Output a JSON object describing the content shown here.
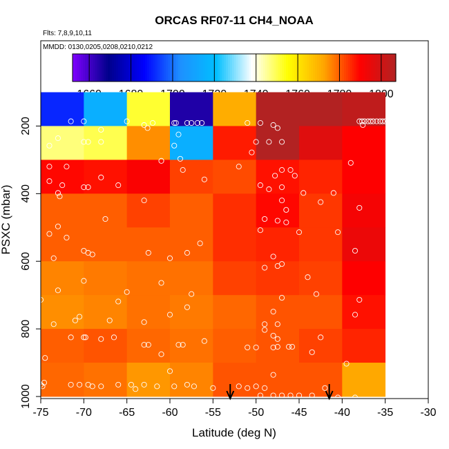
{
  "chart_data": {
    "type": "heatmap",
    "title": "ORCAS RF07-11 CH4_NOAA",
    "subtitle_flights": "Flts: 7,8,9,10,11",
    "subtitle_dates": "MMDD: 0130,0205,0208,0210,0212",
    "xlabel": "Latitude (deg N)",
    "ylabel": "PSXC (mbar)",
    "xlim": [
      -75,
      -30
    ],
    "ylim": [
      1000,
      100
    ],
    "y_inverted": true,
    "x_ticks": [
      -75,
      -70,
      -65,
      -60,
      -55,
      -50,
      -45,
      -40,
      -35,
      -30
    ],
    "x_tick_labels": [
      "-75",
      "-70",
      "-65",
      "-60",
      "-55",
      "-50",
      "-45",
      "-40",
      "-35",
      "-30"
    ],
    "y_ticks": [
      200,
      400,
      600,
      800,
      1000
    ],
    "y_tick_labels": [
      "200",
      "400",
      "600",
      "800",
      "1000"
    ],
    "colorbar": {
      "range": [
        1652,
        1807
      ],
      "ticks": [
        1660,
        1680,
        1700,
        1720,
        1740,
        1760,
        1780,
        1800
      ],
      "tick_labels": [
        "1660",
        "1680",
        "1700",
        "1720",
        "1740",
        "1760",
        "1780",
        "1800"
      ],
      "colors": [
        "#7f00ff",
        "#00008b",
        "#0000ff",
        "#1e90ff",
        "#00bfff",
        "#ffffff",
        "#ffff00",
        "#ffa500",
        "#ff0000",
        "#b22222"
      ]
    },
    "grid": {
      "lat_edges": [
        -75,
        -70,
        -65,
        -60,
        -55,
        -50,
        -45,
        -40,
        -35
      ],
      "p_edges": [
        100,
        200,
        300,
        400,
        500,
        600,
        700,
        800,
        900,
        1000
      ],
      "values": [
        [
          1691,
          1715,
          1752,
          1665,
          1771,
          1807,
          1807,
          1804
        ],
        [
          1747,
          1750,
          1775,
          1715,
          1787,
          1807,
          1797,
          1790
        ],
        [
          1789,
          1788,
          1791,
          1783,
          1782,
          1788,
          1786,
          1790
        ],
        [
          1780,
          1780,
          1783,
          1780,
          1785,
          1789,
          1784,
          1792
        ],
        [
          1780,
          1780,
          1780,
          1780,
          1785,
          1786,
          1784,
          1794
        ],
        [
          1776,
          1777,
          1778,
          1778,
          1783,
          1784,
          1783,
          1790
        ],
        [
          1775,
          1776,
          1778,
          1777,
          1779,
          1781,
          1781,
          1788
        ],
        [
          1780,
          1781,
          1779,
          1778,
          1780,
          1781,
          1783,
          1786
        ],
        [
          1779,
          1778,
          1774,
          1776,
          1781,
          1781,
          1781,
          1772
        ]
      ]
    },
    "samples": [
      [
        -71.5,
        186
      ],
      [
        -70,
        186
      ],
      [
        -65,
        186
      ],
      [
        -62,
        191
      ],
      [
        -59.5,
        191
      ],
      [
        -59.3,
        191
      ],
      [
        -58,
        191
      ],
      [
        -57.5,
        191
      ],
      [
        -56.8,
        191
      ],
      [
        -56.3,
        191
      ],
      [
        -51,
        191
      ],
      [
        -49.5,
        191
      ],
      [
        -48,
        197
      ],
      [
        -47.5,
        206
      ],
      [
        -38,
        186
      ],
      [
        -37.7,
        186
      ],
      [
        -37.4,
        186
      ],
      [
        -37,
        186
      ],
      [
        -36.7,
        186
      ],
      [
        -36.4,
        186
      ],
      [
        -36,
        186
      ],
      [
        -35.6,
        186
      ],
      [
        -35.3,
        186
      ],
      [
        -35,
        186
      ],
      [
        -37.6,
        197
      ],
      [
        -63,
        197
      ],
      [
        -62.6,
        206
      ],
      [
        -68,
        211
      ],
      [
        -59,
        225
      ],
      [
        -73,
        236
      ],
      [
        -70,
        247
      ],
      [
        -69.5,
        247
      ],
      [
        -68,
        247
      ],
      [
        -50,
        247
      ],
      [
        -48.5,
        247
      ],
      [
        -47,
        247
      ],
      [
        -50.5,
        278
      ],
      [
        -59.5,
        258
      ],
      [
        -74,
        258
      ],
      [
        -61,
        303
      ],
      [
        -58.8,
        297
      ],
      [
        -39,
        309
      ],
      [
        -74,
        320
      ],
      [
        -72,
        320
      ],
      [
        -52,
        320
      ],
      [
        -58.5,
        330
      ],
      [
        -47,
        330
      ],
      [
        -46,
        330
      ],
      [
        -47.8,
        347
      ],
      [
        -45.5,
        347
      ],
      [
        -68,
        352
      ],
      [
        -56,
        358
      ],
      [
        -74,
        363
      ],
      [
        -72.5,
        375
      ],
      [
        -70,
        381
      ],
      [
        -69.5,
        381
      ],
      [
        -66,
        375
      ],
      [
        -49.5,
        375
      ],
      [
        -48.5,
        387
      ],
      [
        -47,
        381
      ],
      [
        -44.5,
        398
      ],
      [
        -73,
        398
      ],
      [
        -41,
        398
      ],
      [
        -72.8,
        408
      ],
      [
        -63,
        420
      ],
      [
        -47,
        420
      ],
      [
        -42.5,
        425
      ],
      [
        -38,
        442
      ],
      [
        -46.5,
        448
      ],
      [
        -67.5,
        475
      ],
      [
        -49,
        475
      ],
      [
        -47.5,
        480
      ],
      [
        -46.5,
        485
      ],
      [
        -73,
        497
      ],
      [
        -49.5,
        508
      ],
      [
        -45,
        514
      ],
      [
        -40.5,
        514
      ],
      [
        -74,
        519
      ],
      [
        -72,
        530
      ],
      [
        -56.5,
        547
      ],
      [
        -38.5,
        569
      ],
      [
        -70,
        569
      ],
      [
        -69.5,
        575
      ],
      [
        -69,
        580
      ],
      [
        -62.5,
        575
      ],
      [
        -58,
        575
      ],
      [
        -48,
        586
      ],
      [
        -60,
        591
      ],
      [
        -73.5,
        591
      ],
      [
        -49,
        619
      ],
      [
        -47.5,
        614
      ],
      [
        -47,
        608
      ],
      [
        -44,
        647
      ],
      [
        -70,
        658
      ],
      [
        -61,
        664
      ],
      [
        -73,
        686
      ],
      [
        -65,
        691
      ],
      [
        -43,
        697
      ],
      [
        -57.5,
        697
      ],
      [
        -38,
        714
      ],
      [
        -75,
        714
      ],
      [
        -66,
        719
      ],
      [
        -47,
        708
      ],
      [
        -58,
        736
      ],
      [
        -48,
        749
      ],
      [
        -38.5,
        758
      ],
      [
        -70.5,
        764
      ],
      [
        -60,
        758
      ],
      [
        -67,
        775
      ],
      [
        -71,
        775
      ],
      [
        -63,
        780
      ],
      [
        -73.5,
        786
      ],
      [
        -47.5,
        786
      ],
      [
        -49,
        786
      ],
      [
        -42.5,
        825
      ],
      [
        -71.5,
        825
      ],
      [
        -70,
        825
      ],
      [
        -69.8,
        825
      ],
      [
        -68,
        830
      ],
      [
        -66.5,
        825
      ],
      [
        -49,
        803
      ],
      [
        -48,
        820
      ],
      [
        -47.5,
        830
      ],
      [
        -56,
        836
      ],
      [
        -63,
        847
      ],
      [
        -62.5,
        847
      ],
      [
        -59,
        847
      ],
      [
        -58.5,
        847
      ],
      [
        -47.5,
        853
      ],
      [
        -46.2,
        853
      ],
      [
        -45.8,
        853
      ],
      [
        -48,
        855
      ],
      [
        -50,
        855
      ],
      [
        -51,
        855
      ],
      [
        -61,
        875
      ],
      [
        -43.5,
        869
      ],
      [
        -74.5,
        886
      ],
      [
        -39.5,
        903
      ],
      [
        -60,
        925
      ],
      [
        -48,
        936
      ],
      [
        -71.5,
        965
      ],
      [
        -70.5,
        965
      ],
      [
        -69,
        970
      ],
      [
        -68,
        970
      ],
      [
        -66,
        965
      ],
      [
        -64.5,
        965
      ],
      [
        -63,
        965
      ],
      [
        -61.5,
        970
      ],
      [
        -59.5,
        970
      ],
      [
        -58,
        965
      ],
      [
        -55,
        975
      ],
      [
        -52,
        970
      ],
      [
        -51,
        975
      ],
      [
        -50,
        970
      ],
      [
        -49,
        975
      ],
      [
        -75,
        965
      ],
      [
        -74.8,
        970
      ],
      [
        -42,
        975
      ],
      [
        -49.5,
        997
      ],
      [
        -48,
        997
      ],
      [
        -47,
        997
      ],
      [
        -46,
        997
      ],
      [
        -45,
        997
      ],
      [
        -43.5,
        997
      ],
      [
        -40.5,
        1003
      ],
      [
        -38.5,
        1003
      ],
      [
        -69.5,
        965
      ],
      [
        -74.6,
        959
      ],
      [
        -64,
        978
      ],
      [
        -57.2,
        970
      ]
    ],
    "markers": [
      {
        "lat": -53,
        "type": "arrow"
      },
      {
        "lat": -41.5,
        "type": "arrow"
      }
    ]
  }
}
